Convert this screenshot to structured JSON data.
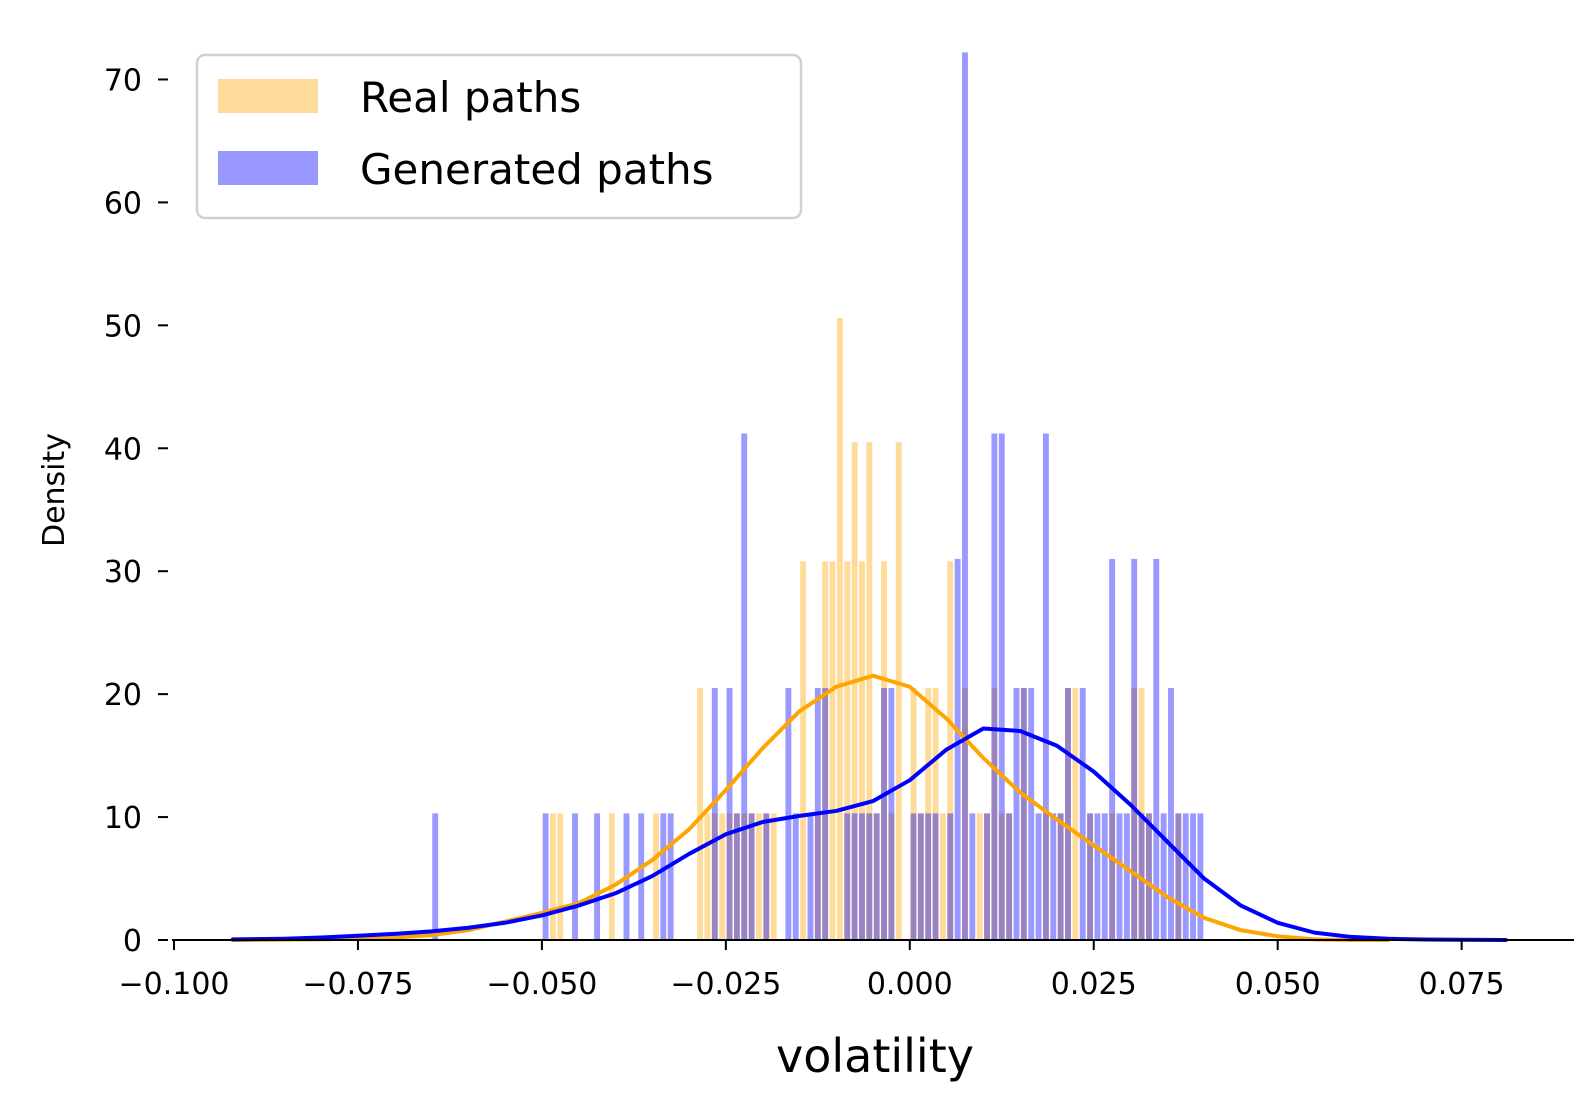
{
  "chart_data": {
    "type": "histogram",
    "xlabel": "volatility",
    "ylabel": "Density",
    "xlim": [
      -0.1,
      0.09
    ],
    "ylim": [
      0,
      75
    ],
    "x_ticks": [
      -0.1,
      -0.075,
      -0.05,
      -0.025,
      0.0,
      0.025,
      0.05,
      0.075
    ],
    "x_tick_labels": [
      "−0.100",
      "−0.075",
      "−0.050",
      "−0.025",
      "0.000",
      "0.025",
      "0.050",
      "0.075"
    ],
    "y_ticks": [
      0,
      10,
      20,
      30,
      40,
      50,
      60,
      70
    ],
    "y_tick_labels": [
      "0",
      "10",
      "20",
      "30",
      "40",
      "50",
      "60",
      "70"
    ],
    "bin_width": 0.0008,
    "legend": {
      "position": "top-left"
    },
    "series": [
      {
        "name": "Real paths",
        "kind": "histogram",
        "color": "#FFA500",
        "opacity": 0.4,
        "bins": [
          {
            "x": -0.0485,
            "y": 10.3
          },
          {
            "x": -0.0475,
            "y": 10.3
          },
          {
            "x": -0.0405,
            "y": 10.3
          },
          {
            "x": -0.0345,
            "y": 10.3
          },
          {
            "x": -0.0285,
            "y": 20.5
          },
          {
            "x": -0.0275,
            "y": 10.3
          },
          {
            "x": -0.0265,
            "y": 10.3
          },
          {
            "x": -0.0255,
            "y": 10.3
          },
          {
            "x": -0.0245,
            "y": 10.3
          },
          {
            "x": -0.0235,
            "y": 10.3
          },
          {
            "x": -0.0225,
            "y": 10.3
          },
          {
            "x": -0.0215,
            "y": 10.3
          },
          {
            "x": -0.0205,
            "y": 10.3
          },
          {
            "x": -0.0195,
            "y": 10.3
          },
          {
            "x": -0.0185,
            "y": 10.3
          },
          {
            "x": -0.0145,
            "y": 30.8
          },
          {
            "x": -0.0125,
            "y": 10.3
          },
          {
            "x": -0.0115,
            "y": 30.8
          },
          {
            "x": -0.0105,
            "y": 30.8
          },
          {
            "x": -0.0095,
            "y": 50.6
          },
          {
            "x": -0.0085,
            "y": 30.8
          },
          {
            "x": -0.0075,
            "y": 40.5
          },
          {
            "x": -0.0065,
            "y": 30.8
          },
          {
            "x": -0.0055,
            "y": 40.5
          },
          {
            "x": -0.0045,
            "y": 10.3
          },
          {
            "x": -0.0035,
            "y": 30.8
          },
          {
            "x": -0.0025,
            "y": 10.3
          },
          {
            "x": -0.0015,
            "y": 40.5
          },
          {
            "x": 0.0005,
            "y": 20.5
          },
          {
            "x": 0.0015,
            "y": 10.3
          },
          {
            "x": 0.0025,
            "y": 20.5
          },
          {
            "x": 0.0035,
            "y": 20.5
          },
          {
            "x": 0.0045,
            "y": 10.3
          },
          {
            "x": 0.0055,
            "y": 30.8
          },
          {
            "x": 0.0075,
            "y": 20.5
          },
          {
            "x": 0.0095,
            "y": 10.3
          },
          {
            "x": 0.0105,
            "y": 10.3
          },
          {
            "x": 0.0115,
            "y": 20.5
          },
          {
            "x": 0.0125,
            "y": 10.3
          },
          {
            "x": 0.0135,
            "y": 10.3
          },
          {
            "x": 0.0155,
            "y": 20.5
          },
          {
            "x": 0.0185,
            "y": 10.3
          },
          {
            "x": 0.0205,
            "y": 10.3
          },
          {
            "x": 0.0215,
            "y": 20.5
          },
          {
            "x": 0.0225,
            "y": 20.5
          },
          {
            "x": 0.0245,
            "y": 10.3
          },
          {
            "x": 0.0275,
            "y": 10.3
          },
          {
            "x": 0.0305,
            "y": 20.5
          },
          {
            "x": 0.0315,
            "y": 20.5
          },
          {
            "x": 0.0325,
            "y": 10.3
          },
          {
            "x": 0.0365,
            "y": 10.3
          }
        ]
      },
      {
        "name": "Generated paths",
        "kind": "histogram",
        "color": "#0000FF",
        "opacity": 0.4,
        "bins": [
          {
            "x": -0.0645,
            "y": 10.3
          },
          {
            "x": -0.0495,
            "y": 10.3
          },
          {
            "x": -0.0455,
            "y": 10.3
          },
          {
            "x": -0.0425,
            "y": 10.3
          },
          {
            "x": -0.0385,
            "y": 10.3
          },
          {
            "x": -0.0365,
            "y": 10.3
          },
          {
            "x": -0.0335,
            "y": 10.3
          },
          {
            "x": -0.0325,
            "y": 10.3
          },
          {
            "x": -0.0265,
            "y": 20.5
          },
          {
            "x": -0.0245,
            "y": 20.5
          },
          {
            "x": -0.0235,
            "y": 10.3
          },
          {
            "x": -0.0225,
            "y": 41.2
          },
          {
            "x": -0.0215,
            "y": 10.3
          },
          {
            "x": -0.0195,
            "y": 10.3
          },
          {
            "x": -0.0165,
            "y": 20.5
          },
          {
            "x": -0.0155,
            "y": 10.3
          },
          {
            "x": -0.0135,
            "y": 10.3
          },
          {
            "x": -0.0125,
            "y": 20.5
          },
          {
            "x": -0.0115,
            "y": 20.5
          },
          {
            "x": -0.0085,
            "y": 10.3
          },
          {
            "x": -0.0075,
            "y": 10.3
          },
          {
            "x": -0.0065,
            "y": 10.3
          },
          {
            "x": -0.0055,
            "y": 10.3
          },
          {
            "x": -0.0045,
            "y": 10.3
          },
          {
            "x": -0.0035,
            "y": 20.5
          },
          {
            "x": -0.0025,
            "y": 20.5
          },
          {
            "x": 0.0005,
            "y": 10.3
          },
          {
            "x": 0.0015,
            "y": 10.3
          },
          {
            "x": 0.0025,
            "y": 10.3
          },
          {
            "x": 0.0035,
            "y": 10.3
          },
          {
            "x": 0.0055,
            "y": 10.3
          },
          {
            "x": 0.0065,
            "y": 31.0
          },
          {
            "x": 0.0075,
            "y": 72.2
          },
          {
            "x": 0.0085,
            "y": 10.3
          },
          {
            "x": 0.0105,
            "y": 10.3
          },
          {
            "x": 0.0115,
            "y": 41.2
          },
          {
            "x": 0.0125,
            "y": 41.2
          },
          {
            "x": 0.0135,
            "y": 10.3
          },
          {
            "x": 0.0145,
            "y": 20.5
          },
          {
            "x": 0.0155,
            "y": 20.5
          },
          {
            "x": 0.0165,
            "y": 20.5
          },
          {
            "x": 0.0175,
            "y": 10.3
          },
          {
            "x": 0.0185,
            "y": 41.2
          },
          {
            "x": 0.0195,
            "y": 10.3
          },
          {
            "x": 0.0205,
            "y": 10.3
          },
          {
            "x": 0.0215,
            "y": 20.5
          },
          {
            "x": 0.0235,
            "y": 20.5
          },
          {
            "x": 0.0245,
            "y": 10.3
          },
          {
            "x": 0.0255,
            "y": 10.3
          },
          {
            "x": 0.0265,
            "y": 10.3
          },
          {
            "x": 0.0275,
            "y": 31.0
          },
          {
            "x": 0.0285,
            "y": 10.3
          },
          {
            "x": 0.0295,
            "y": 10.3
          },
          {
            "x": 0.0305,
            "y": 31.0
          },
          {
            "x": 0.0315,
            "y": 10.3
          },
          {
            "x": 0.0325,
            "y": 10.3
          },
          {
            "x": 0.0335,
            "y": 31.0
          },
          {
            "x": 0.0345,
            "y": 10.3
          },
          {
            "x": 0.0355,
            "y": 20.5
          },
          {
            "x": 0.0365,
            "y": 10.3
          },
          {
            "x": 0.0375,
            "y": 10.3
          },
          {
            "x": 0.0385,
            "y": 10.3
          },
          {
            "x": 0.0395,
            "y": 10.3
          }
        ]
      },
      {
        "name": "Real paths KDE",
        "kind": "line",
        "color": "#FFA500",
        "points": [
          [
            -0.092,
            0.0
          ],
          [
            -0.08,
            0.05
          ],
          [
            -0.07,
            0.2
          ],
          [
            -0.065,
            0.4
          ],
          [
            -0.06,
            0.8
          ],
          [
            -0.055,
            1.5
          ],
          [
            -0.05,
            2.2
          ],
          [
            -0.045,
            3.0
          ],
          [
            -0.04,
            4.5
          ],
          [
            -0.035,
            6.5
          ],
          [
            -0.03,
            9.0
          ],
          [
            -0.025,
            12.2
          ],
          [
            -0.02,
            15.6
          ],
          [
            -0.015,
            18.6
          ],
          [
            -0.01,
            20.6
          ],
          [
            -0.005,
            21.5
          ],
          [
            0.0,
            20.6
          ],
          [
            0.005,
            18.0
          ],
          [
            0.01,
            14.8
          ],
          [
            0.015,
            12.0
          ],
          [
            0.02,
            9.8
          ],
          [
            0.025,
            7.7
          ],
          [
            0.03,
            5.6
          ],
          [
            0.035,
            3.5
          ],
          [
            0.04,
            1.8
          ],
          [
            0.045,
            0.8
          ],
          [
            0.05,
            0.3
          ],
          [
            0.055,
            0.05
          ],
          [
            0.06,
            0.0
          ],
          [
            0.065,
            0.0
          ]
        ]
      },
      {
        "name": "Generated paths KDE",
        "kind": "line",
        "color": "#0000FF",
        "points": [
          [
            -0.092,
            0.05
          ],
          [
            -0.085,
            0.1
          ],
          [
            -0.08,
            0.2
          ],
          [
            -0.075,
            0.35
          ],
          [
            -0.07,
            0.5
          ],
          [
            -0.065,
            0.7
          ],
          [
            -0.06,
            1.0
          ],
          [
            -0.055,
            1.4
          ],
          [
            -0.05,
            2.0
          ],
          [
            -0.045,
            2.8
          ],
          [
            -0.04,
            3.8
          ],
          [
            -0.035,
            5.2
          ],
          [
            -0.03,
            7.0
          ],
          [
            -0.025,
            8.6
          ],
          [
            -0.02,
            9.6
          ],
          [
            -0.015,
            10.1
          ],
          [
            -0.01,
            10.5
          ],
          [
            -0.005,
            11.3
          ],
          [
            0.0,
            13.0
          ],
          [
            0.005,
            15.5
          ],
          [
            0.01,
            17.2
          ],
          [
            0.015,
            17.0
          ],
          [
            0.02,
            15.8
          ],
          [
            0.025,
            13.7
          ],
          [
            0.03,
            11.0
          ],
          [
            0.035,
            8.0
          ],
          [
            0.04,
            5.0
          ],
          [
            0.045,
            2.8
          ],
          [
            0.05,
            1.4
          ],
          [
            0.055,
            0.6
          ],
          [
            0.06,
            0.25
          ],
          [
            0.065,
            0.1
          ],
          [
            0.07,
            0.04
          ],
          [
            0.075,
            0.02
          ],
          [
            0.081,
            0.0
          ]
        ]
      }
    ]
  }
}
